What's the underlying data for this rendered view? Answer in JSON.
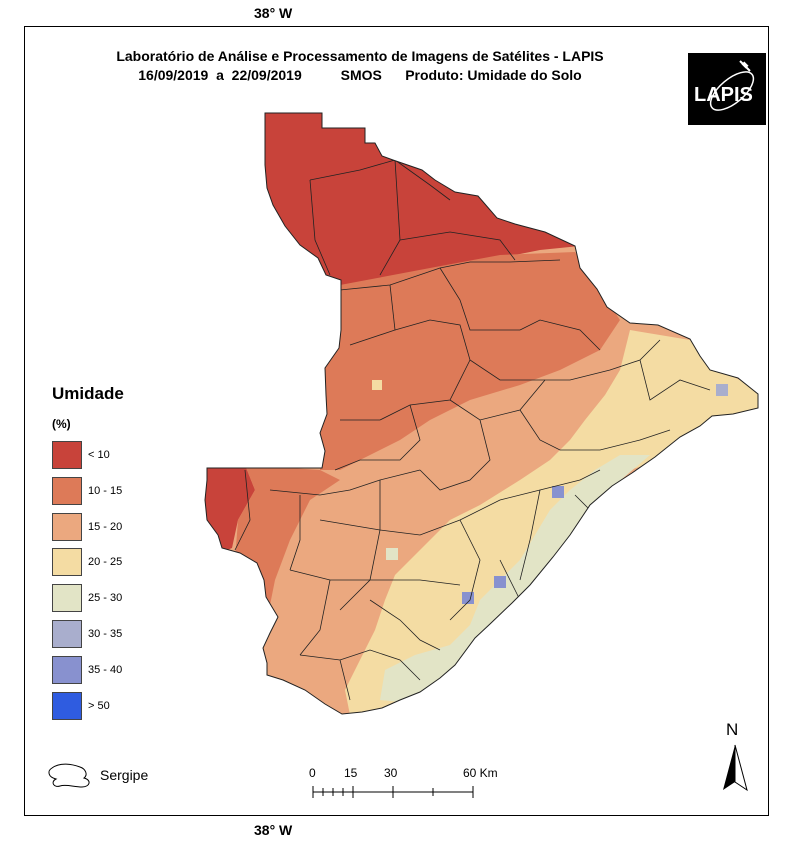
{
  "coord_top": "38° W",
  "coord_bottom": "38° W",
  "title_line1": "Laboratório de Análise e Processamento de Imagens de Satélites - LAPIS",
  "title_line2": "16/09/2019  a  22/09/2019          SMOS      Produto: Umidade do Solo",
  "logo_text": "LAPIS",
  "legend": {
    "title": "Umidade",
    "unit": "(%)",
    "classes": [
      {
        "label": "< 10",
        "color": "#c8433a"
      },
      {
        "label": "10 - 15",
        "color": "#dd7a58"
      },
      {
        "label": "15 - 20",
        "color": "#eba87f"
      },
      {
        "label": "20 - 25",
        "color": "#f4dca3"
      },
      {
        "label": "25 - 30",
        "color": "#e2e4c6"
      },
      {
        "label": "30 - 35",
        "color": "#a9aecd"
      },
      {
        "label": "35 - 40",
        "color": "#8891cf"
      },
      {
        "label": "> 50",
        "color": "#2f5ce0"
      }
    ]
  },
  "state_label": "Sergipe",
  "scale": {
    "ticks": [
      "0",
      "15",
      "30",
      "60 Km"
    ]
  },
  "north_label": "N",
  "map": {
    "region": "Sergipe",
    "icon": "state-outline-icon"
  }
}
